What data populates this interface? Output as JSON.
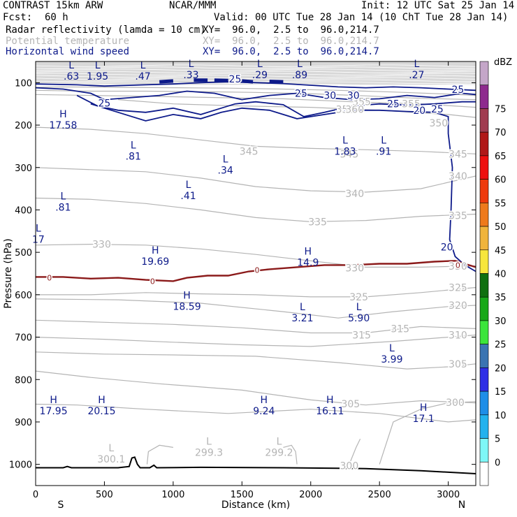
{
  "header": {
    "model": "CONTRAST 15km ARW",
    "org": "NCAR/MMM",
    "init": "Init: 12 UTC Sat 25 Jan 14",
    "fcst_label": "Fcst:",
    "fcst_value": "60 h",
    "valid": "Valid: 00 UTC Tue 28 Jan 14 (10 ChT Tue 28 Jan 14)"
  },
  "fields": [
    {
      "label": "Radar reflectivity (lamda = 10 cm)",
      "xy": "XY=  96.0,  2.5 to  96.0,214.7"
    },
    {
      "label": "Potential temperature",
      "xy": "XY=  96.0,  2.5 to  96.0,214.7"
    },
    {
      "label": "Horizontal wind speed",
      "xy": "XY=  96.0,  2.5 to  96.0,214.7"
    }
  ],
  "colors": {
    "wind": "#0d1a8a",
    "theta": "#b4b4b4",
    "freezing": "#8b1a1a",
    "terrain": "#000000"
  },
  "chart_data": {
    "type": "cross-section",
    "xlabel": "Distance (km)",
    "ylabel": "Pressure (hPa)",
    "xlim": [
      0,
      3200
    ],
    "ylim": [
      1050,
      50
    ],
    "x_ticks": [
      0,
      500,
      1000,
      1500,
      2000,
      2500,
      3000
    ],
    "y_ticks": [
      100,
      200,
      300,
      400,
      500,
      600,
      700,
      800,
      900,
      1000
    ],
    "endpoint_left": "S",
    "endpoint_right": "N",
    "colorbar": {
      "unit": "dBZ",
      "levels": [
        "-5",
        "0",
        "5",
        "10",
        "15",
        "20",
        "25",
        "30",
        "35",
        "40",
        "45",
        "50",
        "55",
        "60",
        "65",
        "70",
        "75"
      ],
      "labels": [
        "0",
        "5",
        "10",
        "15",
        "20",
        "25",
        "30",
        "35",
        "40",
        "45",
        "50",
        "55",
        "60",
        "65",
        "70",
        "75"
      ],
      "colors": [
        "#ffffff",
        "#7ef7f7",
        "#23b2ee",
        "#1e8ee8",
        "#2f2fe6",
        "#3a74b2",
        "#3ce53c",
        "#18a818",
        "#107010",
        "#f7e63c",
        "#f0b43c",
        "#ee7a1c",
        "#ee3a0c",
        "#ee1010",
        "#b01818",
        "#a03c50",
        "#8e2a8e",
        "#c4a6c8"
      ]
    },
    "wind_labels": [
      {
        "x": 500,
        "p": 148,
        "text": "25"
      },
      {
        "x": 1450,
        "p": 91,
        "text": "25"
      },
      {
        "x": 1930,
        "p": 125,
        "text": "25"
      },
      {
        "x": 2140,
        "p": 130,
        "text": "30"
      },
      {
        "x": 2310,
        "p": 130,
        "text": "30"
      },
      {
        "x": 2600,
        "p": 150,
        "text": "25"
      },
      {
        "x": 2790,
        "p": 165,
        "text": "20"
      },
      {
        "x": 2920,
        "p": 162,
        "text": "25"
      },
      {
        "x": 3070,
        "p": 116,
        "text": "25"
      },
      {
        "x": 2990,
        "p": 487,
        "text": "20"
      }
    ],
    "theta_labels": [
      {
        "x": 2250,
        "p": 163,
        "text": "350"
      },
      {
        "x": 1550,
        "p": 262,
        "text": "345"
      },
      {
        "x": 2280,
        "p": 268,
        "text": "345"
      },
      {
        "x": 3070,
        "p": 268,
        "text": "345"
      },
      {
        "x": 2320,
        "p": 361,
        "text": "340"
      },
      {
        "x": 3070,
        "p": 320,
        "text": "340"
      },
      {
        "x": 2050,
        "p": 428,
        "text": "335"
      },
      {
        "x": 3070,
        "p": 413,
        "text": "335"
      },
      {
        "x": 480,
        "p": 481,
        "text": "330"
      },
      {
        "x": 2320,
        "p": 537,
        "text": "330"
      },
      {
        "x": 3070,
        "p": 533,
        "text": "330"
      },
      {
        "x": 2350,
        "p": 605,
        "text": "325"
      },
      {
        "x": 3070,
        "p": 583,
        "text": "325"
      },
      {
        "x": 3070,
        "p": 625,
        "text": "320"
      },
      {
        "x": 2650,
        "p": 680,
        "text": "315"
      },
      {
        "x": 2370,
        "p": 695,
        "text": "315"
      },
      {
        "x": 3070,
        "p": 695,
        "text": "310"
      },
      {
        "x": 3070,
        "p": 763,
        "text": "305"
      },
      {
        "x": 2290,
        "p": 857,
        "text": "305"
      },
      {
        "x": 3050,
        "p": 854,
        "text": "300"
      },
      {
        "x": 2280,
        "p": 1003,
        "text": "300"
      },
      {
        "x": 2370,
        "p": 145,
        "text": "355"
      },
      {
        "x": 2730,
        "p": 150,
        "text": "355"
      },
      {
        "x": 2930,
        "p": 195,
        "text": "350"
      },
      {
        "x": 2320,
        "p": 163,
        "text": "360"
      }
    ],
    "freezing_labels": [
      {
        "x": 100,
        "p": 560,
        "text": "0"
      },
      {
        "x": 850,
        "p": 568,
        "text": "0"
      },
      {
        "x": 1610,
        "p": 542,
        "text": "0"
      },
      {
        "x": 3070,
        "p": 530,
        "text": "0"
      }
    ],
    "extrema": [
      {
        "x": 260,
        "p": 73,
        "kind": "L",
        "value": ".63"
      },
      {
        "x": 450,
        "p": 73,
        "kind": "L",
        "value": "1.95"
      },
      {
        "x": 780,
        "p": 73,
        "kind": "L",
        "value": ".47"
      },
      {
        "x": 1130,
        "p": 70,
        "kind": "L",
        "value": ".33"
      },
      {
        "x": 1630,
        "p": 70,
        "kind": "L",
        "value": ".29"
      },
      {
        "x": 1920,
        "p": 70,
        "kind": "L",
        "value": ".89"
      },
      {
        "x": 2770,
        "p": 70,
        "kind": "L",
        "value": ".27"
      },
      {
        "x": 200,
        "p": 188,
        "kind": "H",
        "value": "17.58"
      },
      {
        "x": 710,
        "p": 262,
        "kind": "L",
        "value": ".81"
      },
      {
        "x": 1380,
        "p": 295,
        "kind": "L",
        "value": ".34"
      },
      {
        "x": 2250,
        "p": 250,
        "kind": "L",
        "value": "1.83"
      },
      {
        "x": 2530,
        "p": 250,
        "kind": "L",
        "value": ".91"
      },
      {
        "x": 1110,
        "p": 355,
        "kind": "L",
        "value": ".41"
      },
      {
        "x": 200,
        "p": 382,
        "kind": "L",
        "value": ".81"
      },
      {
        "x": 20,
        "p": 458,
        "kind": "L",
        "value": "17"
      },
      {
        "x": 870,
        "p": 510,
        "kind": "H",
        "value": "19.69"
      },
      {
        "x": 1980,
        "p": 512,
        "kind": "H",
        "value": "14.9"
      },
      {
        "x": 1100,
        "p": 616,
        "kind": "H",
        "value": "18.59"
      },
      {
        "x": 1940,
        "p": 643,
        "kind": "L",
        "value": "3.21"
      },
      {
        "x": 2350,
        "p": 643,
        "kind": "L",
        "value": "5.90"
      },
      {
        "x": 2590,
        "p": 740,
        "kind": "L",
        "value": "3.99"
      },
      {
        "x": 130,
        "p": 862,
        "kind": "H",
        "value": "17.95"
      },
      {
        "x": 480,
        "p": 862,
        "kind": "H",
        "value": "20.15"
      },
      {
        "x": 1660,
        "p": 862,
        "kind": "H",
        "value": "9.24"
      },
      {
        "x": 2140,
        "p": 862,
        "kind": "H",
        "value": "16.11"
      },
      {
        "x": 2820,
        "p": 880,
        "kind": "H",
        "value": "17.1"
      },
      {
        "x": 550,
        "p": 976,
        "kind": "L",
        "value": "300.1",
        "style": "theta"
      },
      {
        "x": 1260,
        "p": 960,
        "kind": "L",
        "value": "299.3",
        "style": "theta"
      },
      {
        "x": 1770,
        "p": 960,
        "kind": "L",
        "value": "299.2",
        "style": "theta"
      }
    ]
  }
}
